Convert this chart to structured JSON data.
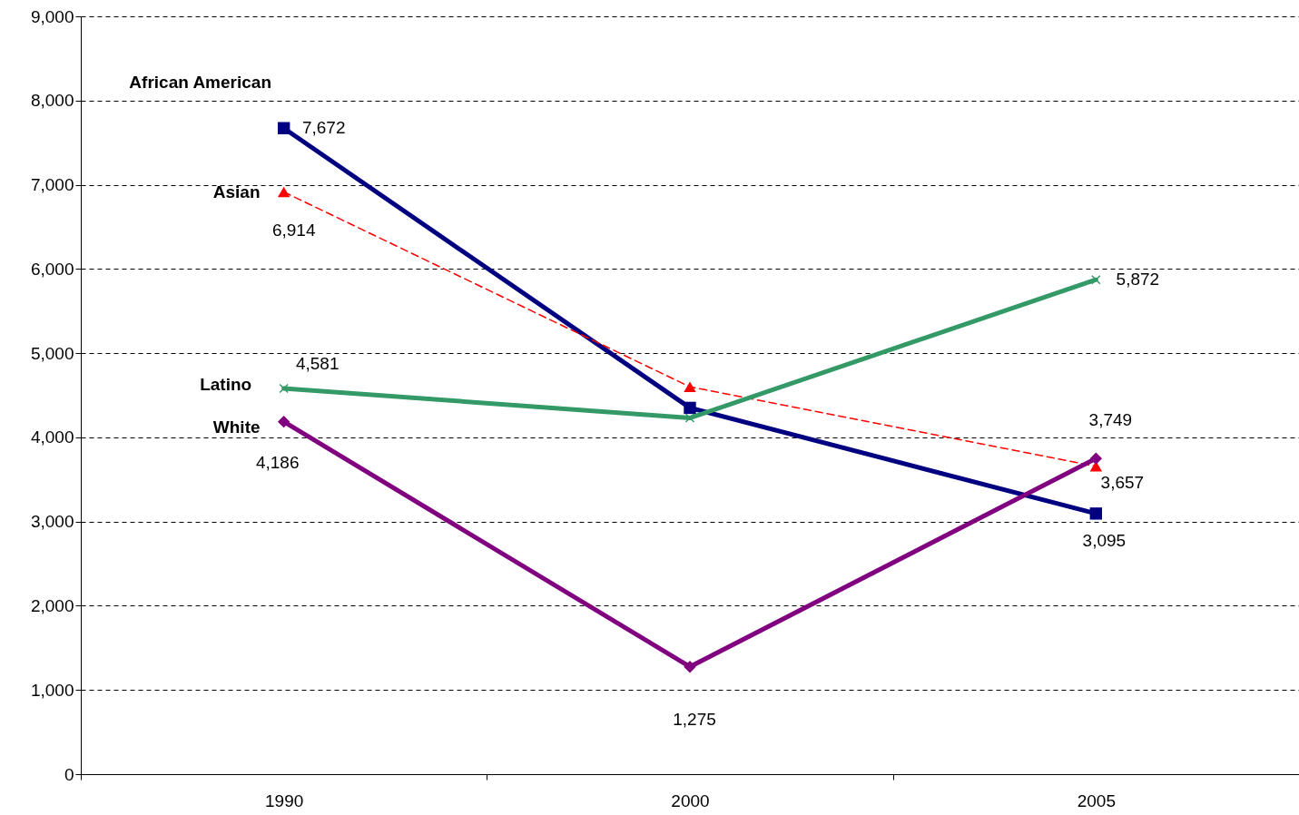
{
  "chart_data": {
    "type": "line",
    "categories": [
      "1990",
      "2000",
      "2005"
    ],
    "ylim": [
      0,
      9000
    ],
    "yticks": [
      0,
      {
        "value": 1000,
        "label": "1,000"
      },
      {
        "value": 2000,
        "label": "2,000"
      },
      {
        "value": 3000,
        "label": "3,000"
      },
      {
        "value": 4000,
        "label": "4,000"
      },
      {
        "value": 5000,
        "label": "5,000"
      },
      {
        "value": 6000,
        "label": "6,000"
      },
      {
        "value": 7000,
        "label": "7,000"
      },
      {
        "value": 8000,
        "label": "8,000"
      },
      {
        "value": 9000,
        "label": "9,000"
      }
    ],
    "grid": "y",
    "series": [
      {
        "name": "African American",
        "color": "#000080",
        "marker": "square",
        "line_style": "solid",
        "values": [
          7672,
          4350,
          3095
        ],
        "value_labels": [
          "7,672",
          null,
          "3,095"
        ]
      },
      {
        "name": "Asian",
        "color": "#ff0000",
        "marker": "triangle",
        "line_style": "dashed",
        "values": [
          6914,
          4600,
          3657
        ],
        "value_labels": [
          "6,914",
          null,
          "3,657"
        ]
      },
      {
        "name": "Latino",
        "color": "#339966",
        "marker": "cross",
        "line_style": "solid",
        "values": [
          4581,
          4230,
          5872
        ],
        "value_labels": [
          "4,581",
          null,
          "5,872"
        ]
      },
      {
        "name": "White",
        "color": "#800080",
        "marker": "diamond",
        "line_style": "solid",
        "values": [
          4186,
          1275,
          3749
        ],
        "value_labels": [
          "4,186",
          "1,275",
          "3,749"
        ]
      }
    ]
  }
}
